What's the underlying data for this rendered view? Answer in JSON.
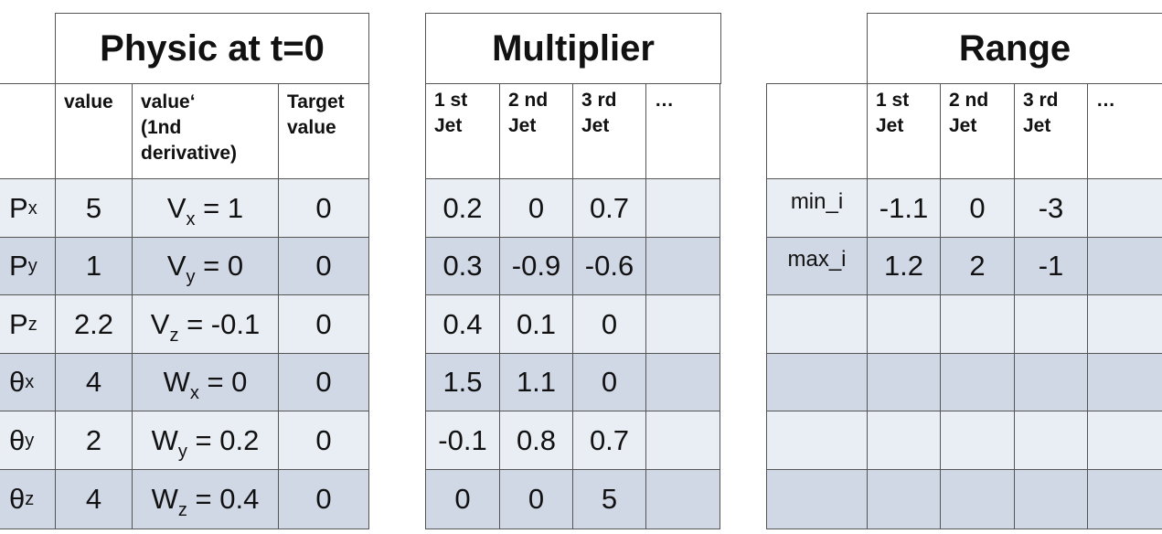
{
  "physic": {
    "title": "Physic at t=0",
    "headers": {
      "value": "value",
      "derivative": [
        "value‘",
        "(1nd",
        "derivative)"
      ],
      "target": [
        "Target",
        "value"
      ]
    },
    "rows": [
      {
        "sym": "P",
        "sub": "x",
        "value": "5",
        "dsym": "V",
        "dsub": "x",
        "dval": " = 1",
        "target": "0"
      },
      {
        "sym": "P",
        "sub": "y",
        "value": "1",
        "dsym": "V",
        "dsub": "y",
        "dval": " = 0",
        "target": "0"
      },
      {
        "sym": "P",
        "sub": "z",
        "value": "2.2",
        "dsym": "V",
        "dsub": "z",
        "dval": " = -0.1",
        "target": "0"
      },
      {
        "sym": "θ",
        "sub": "x",
        "value": "4",
        "dsym": "W",
        "dsub": "x",
        "dval": " = 0",
        "target": "0"
      },
      {
        "sym": "θ",
        "sub": "y",
        "value": "2",
        "dsym": "W",
        "dsub": "y",
        "dval": " = 0.2",
        "target": "0"
      },
      {
        "sym": "θ",
        "sub": "z",
        "value": "4",
        "dsym": "W",
        "dsub": "z",
        "dval": " = 0.4",
        "target": "0"
      }
    ]
  },
  "multiplier": {
    "title": "Multiplier",
    "headers": [
      [
        "1 st",
        "Jet"
      ],
      [
        "2 nd",
        "Jet"
      ],
      [
        "3 rd",
        "Jet"
      ],
      [
        "…",
        ""
      ]
    ],
    "rows": [
      [
        "0.2",
        "0",
        "0.7",
        ""
      ],
      [
        "0.3",
        "-0.9",
        "-0.6",
        ""
      ],
      [
        "0.4",
        "0.1",
        "0",
        ""
      ],
      [
        "1.5",
        "1.1",
        "0",
        ""
      ],
      [
        "-0.1",
        "0.8",
        "0.7",
        ""
      ],
      [
        "0",
        "0",
        "5",
        ""
      ]
    ]
  },
  "range": {
    "title": "Range",
    "headers": [
      [
        "1 st",
        "Jet"
      ],
      [
        "2 nd",
        "Jet"
      ],
      [
        "3 rd",
        "Jet"
      ],
      [
        "…",
        ""
      ]
    ],
    "rows": [
      {
        "label": "min_i",
        "values": [
          "-1.1",
          "0",
          "-3",
          ""
        ]
      },
      {
        "label": "max_i",
        "values": [
          "1.2",
          "2",
          "-1",
          ""
        ]
      },
      {
        "label": "",
        "values": [
          "",
          "",
          "",
          ""
        ]
      },
      {
        "label": "",
        "values": [
          "",
          "",
          "",
          ""
        ]
      },
      {
        "label": "",
        "values": [
          "",
          "",
          "",
          ""
        ]
      },
      {
        "label": "",
        "values": [
          "",
          "",
          "",
          ""
        ]
      }
    ]
  }
}
